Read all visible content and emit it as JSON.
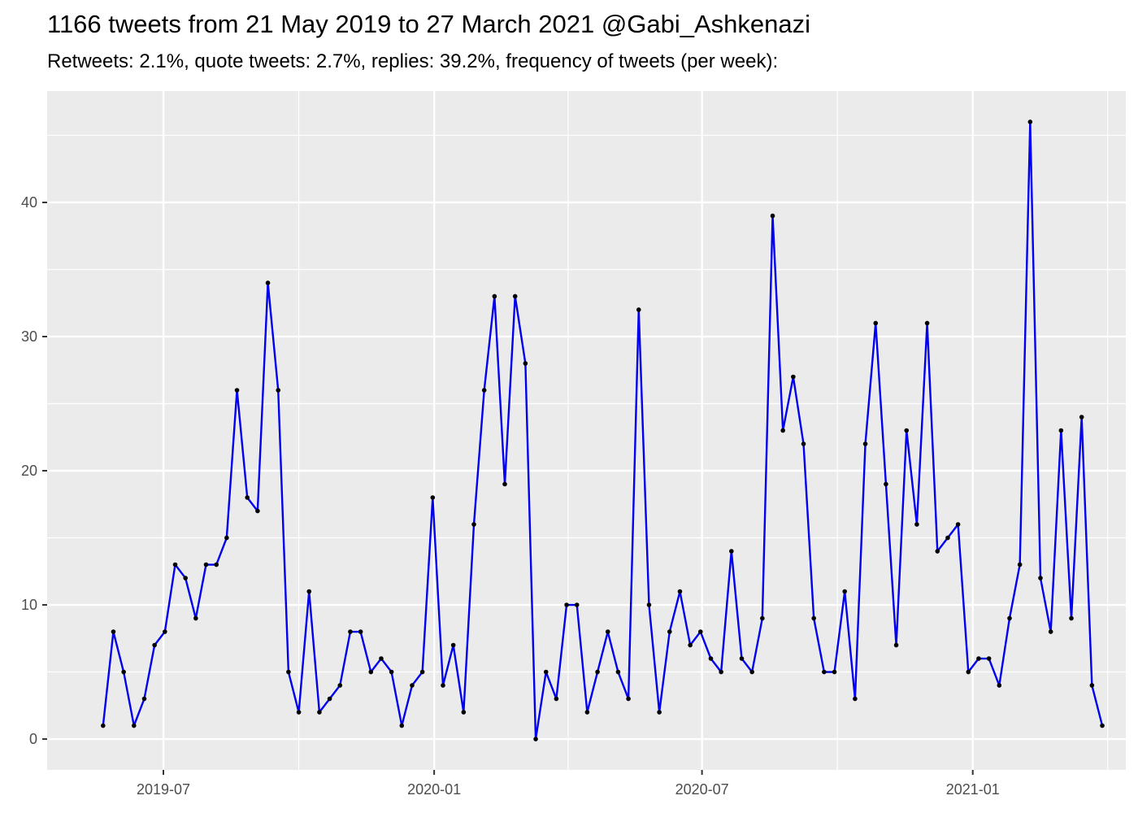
{
  "title": "1166 tweets from 21 May 2019 to 27 March 2021 @Gabi_Ashkenazi",
  "subtitle": "Retweets: 2.1%, quote tweets: 2.7%, replies: 39.2%, frequency of tweets (per week):",
  "chart_data": {
    "type": "line",
    "title": "1166 tweets from 21 May 2019 to 27 March 2021 @Gabi_Ashkenazi",
    "subtitle": "Retweets: 2.1%, quote tweets: 2.7%, replies: 39.2%, frequency of tweets (per week):",
    "xlabel": "",
    "ylabel": "",
    "x_start": "2019-05-21",
    "x_step_days": 7,
    "values": [
      1,
      8,
      5,
      1,
      3,
      7,
      8,
      13,
      12,
      9,
      13,
      13,
      15,
      26,
      18,
      17,
      34,
      26,
      5,
      2,
      11,
      2,
      3,
      4,
      8,
      8,
      5,
      6,
      5,
      1,
      4,
      5,
      18,
      4,
      7,
      2,
      16,
      26,
      33,
      19,
      33,
      28,
      0,
      5,
      3,
      10,
      10,
      2,
      5,
      8,
      5,
      3,
      32,
      10,
      2,
      8,
      11,
      7,
      8,
      6,
      5,
      14,
      6,
      5,
      9,
      39,
      23,
      27,
      22,
      9,
      5,
      5,
      11,
      3,
      22,
      31,
      19,
      7,
      23,
      16,
      31,
      14,
      15,
      16,
      5,
      6,
      6,
      4,
      9,
      13,
      46,
      12,
      8,
      23,
      9,
      24,
      4,
      1
    ],
    "xlim": [
      "2019-04-13",
      "2021-04-15"
    ],
    "ylim": [
      -2.3,
      48.3
    ],
    "x_ticks": [
      {
        "date": "2019-07-01",
        "label": "2019-07"
      },
      {
        "date": "2020-01-01",
        "label": "2020-01"
      },
      {
        "date": "2020-07-01",
        "label": "2020-07"
      },
      {
        "date": "2021-01-01",
        "label": "2021-01"
      }
    ],
    "y_ticks": [
      0,
      10,
      20,
      30,
      40
    ],
    "line_color": "#0000EE",
    "point_color": "#000000",
    "panel_background": "#EBEBEB",
    "grid_color": "#FFFFFF",
    "grid": true,
    "legend": "none"
  }
}
